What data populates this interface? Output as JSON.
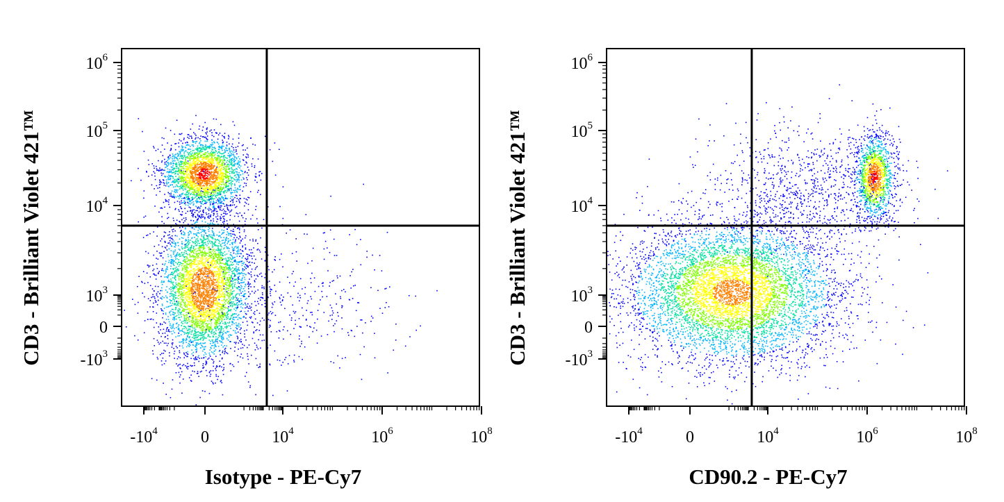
{
  "chart_data": [
    {
      "type": "scatter",
      "subtype": "flow-cytometry-density-dot-plot",
      "title": "",
      "xlabel": "Isotype - PE-Cy7",
      "ylabel": "CD3 - Brilliant Violet 421™",
      "x_scale": "biexponential",
      "y_scale": "biexponential",
      "x_ticks": [
        {
          "value": -10000,
          "base": "-10",
          "exp": "4"
        },
        {
          "value": 0,
          "base": "0",
          "exp": ""
        },
        {
          "value": 10000,
          "base": "10",
          "exp": "4"
        },
        {
          "value": 1000000,
          "base": "10",
          "exp": "6"
        },
        {
          "value": 100000000,
          "base": "10",
          "exp": "8"
        }
      ],
      "y_ticks": [
        {
          "value": 1000000,
          "base": "10",
          "exp": "6"
        },
        {
          "value": 100000,
          "base": "10",
          "exp": "5"
        },
        {
          "value": 10000,
          "base": "10",
          "exp": "4"
        },
        {
          "value": 1000,
          "base": "10",
          "exp": "3"
        },
        {
          "value": 0,
          "base": "0",
          "exp": ""
        },
        {
          "value": -1000,
          "base": "-10",
          "exp": "3"
        }
      ],
      "quadrant_gate": {
        "x": 1500,
        "y": 6000
      },
      "populations": [
        {
          "x_center": 0,
          "y_center": 25000,
          "density": "high"
        },
        {
          "x_center": 0,
          "y_center": 1000,
          "density": "high"
        },
        {
          "x_center": 30000,
          "y_center": 1000,
          "density": "sparse"
        }
      ],
      "color_scale": [
        "#0000ff",
        "#00b4ff",
        "#00e0a0",
        "#80ff00",
        "#ffff00",
        "#ff8000",
        "#ff0000"
      ]
    },
    {
      "type": "scatter",
      "subtype": "flow-cytometry-density-dot-plot",
      "title": "",
      "xlabel": "CD90.2 - PE-Cy7",
      "ylabel": "CD3 - Brilliant Violet 421™",
      "x_scale": "biexponential",
      "y_scale": "biexponential",
      "x_ticks": [
        {
          "value": -10000,
          "base": "-10",
          "exp": "4"
        },
        {
          "value": 0,
          "base": "0",
          "exp": ""
        },
        {
          "value": 10000,
          "base": "10",
          "exp": "4"
        },
        {
          "value": 1000000,
          "base": "10",
          "exp": "6"
        },
        {
          "value": 100000000,
          "base": "10",
          "exp": "8"
        }
      ],
      "y_ticks": [
        {
          "value": 1000000,
          "base": "10",
          "exp": "6"
        },
        {
          "value": 100000,
          "base": "10",
          "exp": "5"
        },
        {
          "value": 10000,
          "base": "10",
          "exp": "4"
        },
        {
          "value": 1000,
          "base": "10",
          "exp": "3"
        },
        {
          "value": 0,
          "base": "0",
          "exp": ""
        },
        {
          "value": -1000,
          "base": "-10",
          "exp": "3"
        }
      ],
      "quadrant_gate": {
        "x": 1500,
        "y": 6000
      },
      "populations": [
        {
          "x_center": 1500,
          "y_center": 1000,
          "density": "high"
        },
        {
          "x_center": 1500000,
          "y_center": 20000,
          "density": "high"
        },
        {
          "x_center": 50000,
          "y_center": 15000,
          "density": "sparse"
        }
      ],
      "color_scale": [
        "#0000ff",
        "#00b4ff",
        "#00e0a0",
        "#80ff00",
        "#ffff00",
        "#ff8000",
        "#ff0000"
      ]
    }
  ]
}
